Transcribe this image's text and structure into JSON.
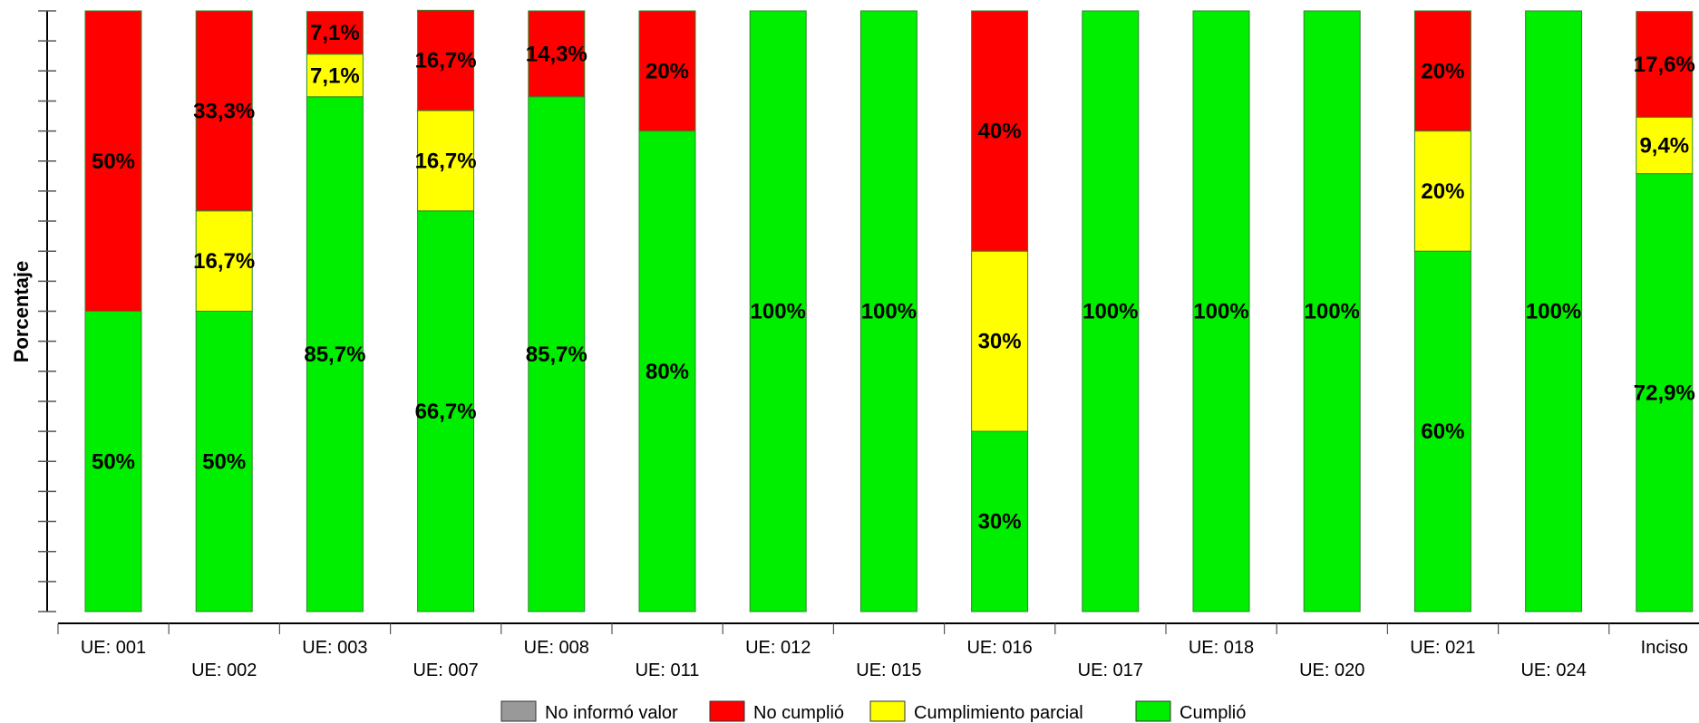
{
  "chart_data": {
    "type": "bar",
    "stacked": true,
    "ylabel": "Porcentaje",
    "ylim": [
      0,
      100
    ],
    "categories": [
      "UE: 001",
      "UE: 002",
      "UE: 003",
      "UE: 007",
      "UE: 008",
      "UE: 011",
      "UE: 012",
      "UE: 015",
      "UE: 016",
      "UE: 017",
      "UE: 018",
      "UE: 020",
      "UE: 021",
      "UE: 024",
      "Inciso"
    ],
    "series": [
      {
        "name": "Cumplió",
        "color": "#00ee00",
        "values": [
          50,
          50,
          85.7,
          66.7,
          85.7,
          80,
          100,
          100,
          30,
          100,
          100,
          100,
          60,
          100,
          72.9
        ],
        "labels": [
          "50%",
          "50%",
          "85,7%",
          "66,7%",
          "85,7%",
          "80%",
          "100%",
          "100%",
          "30%",
          "100%",
          "100%",
          "100%",
          "60%",
          "100%",
          "72,9%"
        ]
      },
      {
        "name": "Cumplimiento parcial",
        "color": "#ffff00",
        "values": [
          0,
          16.7,
          7.1,
          16.7,
          0,
          0,
          0,
          0,
          30,
          0,
          0,
          0,
          20,
          0,
          9.4
        ],
        "labels": [
          "",
          "16,7%",
          "7,1%",
          "16,7%",
          "",
          "",
          "",
          "",
          "30%",
          "",
          "",
          "",
          "20%",
          "",
          "9,4%"
        ]
      },
      {
        "name": "No cumplió",
        "color": "#ff0000",
        "values": [
          50,
          33.3,
          7.1,
          16.7,
          14.3,
          20,
          0,
          0,
          40,
          0,
          0,
          0,
          20,
          0,
          17.6
        ],
        "labels": [
          "50%",
          "33,3%",
          "7,1%",
          "16,7%",
          "14,3%",
          "20%",
          "",
          "",
          "40%",
          "",
          "",
          "",
          "20%",
          "",
          "17,6%"
        ]
      },
      {
        "name": "No informó valor",
        "color": "#999999",
        "values": [
          0,
          0,
          0,
          0,
          0,
          0,
          0,
          0,
          0,
          0,
          0,
          0,
          0,
          0,
          0
        ],
        "labels": [
          "",
          "",
          "",
          "",
          "",
          "",
          "",
          "",
          "",
          "",
          "",
          "",
          "",
          "",
          ""
        ]
      }
    ],
    "legend": {
      "placement": "bottom",
      "order": [
        "No informó valor",
        "No cumplió",
        "Cumplimiento parcial",
        "Cumplió"
      ]
    },
    "grid": false
  }
}
